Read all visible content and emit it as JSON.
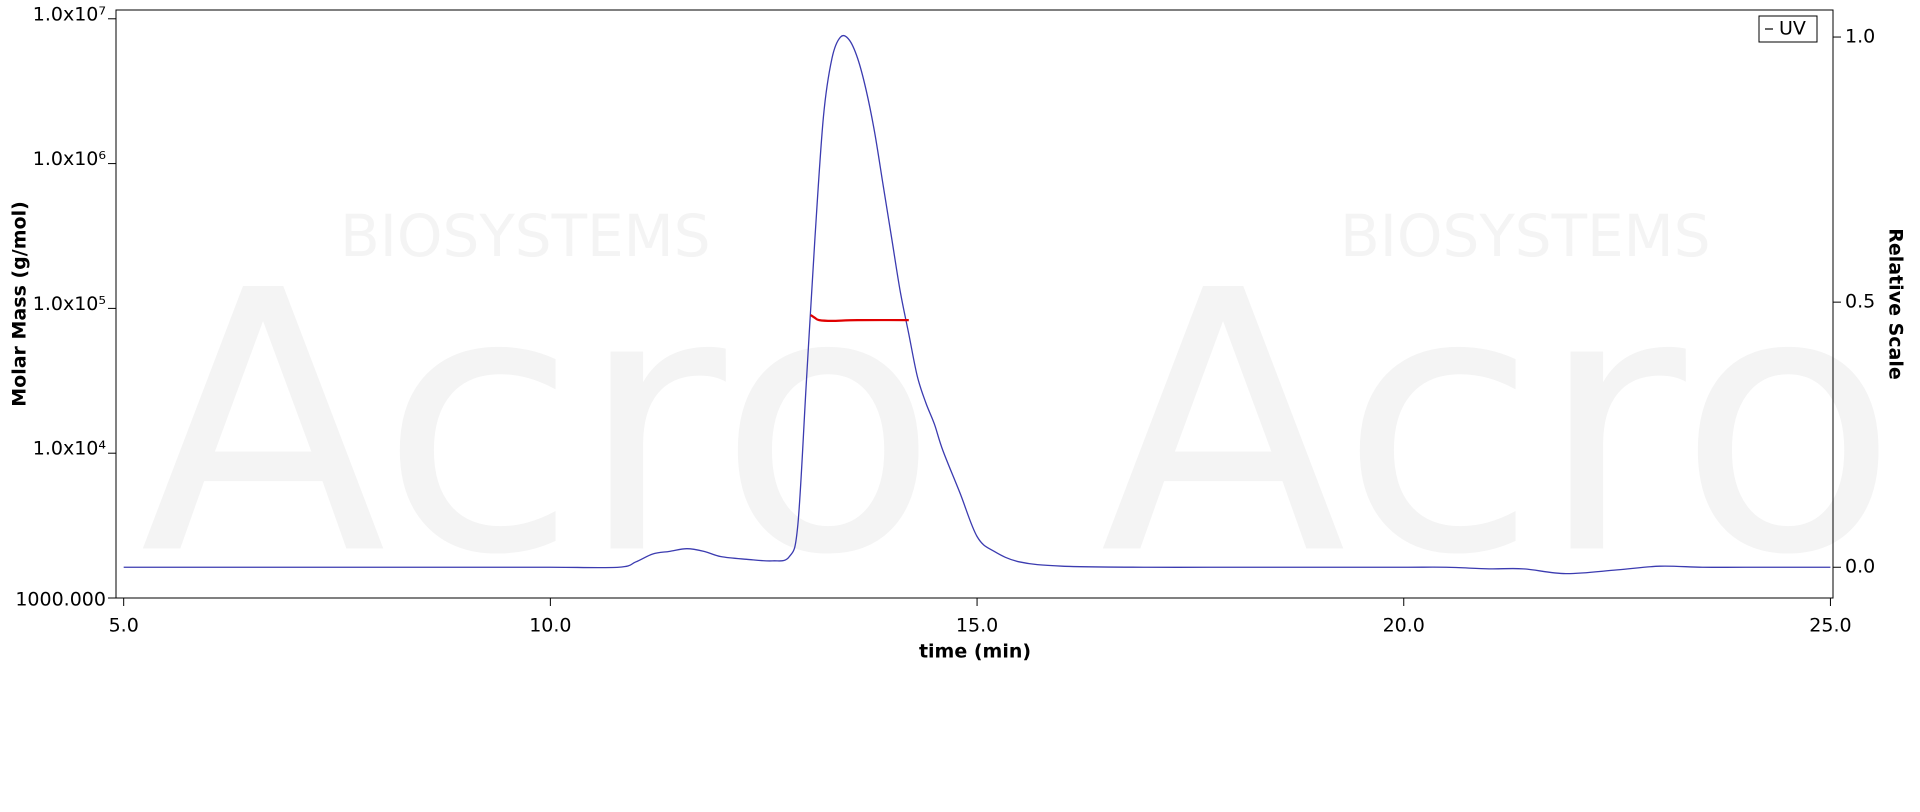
{
  "chart_data": {
    "type": "line",
    "xlabel": "time (min)",
    "ylabel": "Molar Mass (g/mol)",
    "y2label": "Relative Scale",
    "watermark": [
      "Acro",
      "BIOSYSTEMS"
    ],
    "xlim": [
      4.91,
      25.03
    ],
    "xticks": [
      {
        "value": 5,
        "label": "5.0"
      },
      {
        "value": 10,
        "label": "10.0"
      },
      {
        "value": 15,
        "label": "15.0"
      },
      {
        "value": 20,
        "label": "20.0"
      },
      {
        "value": 25,
        "label": "25.0"
      }
    ],
    "ylim": [
      1000,
      11500000
    ],
    "ylog": true,
    "yticks": [
      {
        "value": 1000,
        "label": "1000.000"
      },
      {
        "value": 10000,
        "label": "1.0x10⁴"
      },
      {
        "value": 100000,
        "label": "1.0x10⁵"
      },
      {
        "value": 1000000,
        "label": "1.0x10⁶"
      },
      {
        "value": 10000000,
        "label": "1.0x10⁷"
      }
    ],
    "y2lim": [
      -0.058,
      1.051
    ],
    "y2ticks": [
      {
        "value": 0,
        "label": "0.0"
      },
      {
        "value": 0.5,
        "label": "0.5"
      },
      {
        "value": 1,
        "label": "1.0"
      }
    ],
    "legend": "upper right",
    "series": [
      {
        "name": "UV",
        "color": "#3b3bb0",
        "axis": "y2",
        "x": [
          5.0,
          6,
          7,
          8,
          9,
          10,
          10.8,
          11.0,
          11.2,
          11.4,
          11.6,
          11.8,
          12.0,
          12.3,
          12.6,
          12.8,
          12.9,
          13.0,
          13.1,
          13.2,
          13.3,
          13.4,
          13.5,
          13.6,
          13.7,
          13.8,
          13.9,
          14.0,
          14.1,
          14.2,
          14.3,
          14.4,
          14.5,
          14.6,
          14.8,
          15.0,
          15.2,
          15.5,
          16.0,
          17,
          18,
          19,
          20,
          20.5,
          21.0,
          21.4,
          21.9,
          22.5,
          23.0,
          23.5,
          24,
          25
        ],
        "values": [
          0,
          0,
          0,
          0,
          0,
          0,
          0,
          0.01,
          0.025,
          0.03,
          0.035,
          0.03,
          0.02,
          0.015,
          0.012,
          0.02,
          0.08,
          0.35,
          0.62,
          0.85,
          0.96,
          1.0,
          0.995,
          0.96,
          0.9,
          0.82,
          0.72,
          0.62,
          0.52,
          0.44,
          0.36,
          0.31,
          0.27,
          0.22,
          0.14,
          0.058,
          0.03,
          0.01,
          0.002,
          0,
          0,
          0,
          0,
          0,
          -0.003,
          -0.003,
          -0.012,
          -0.005,
          0.002,
          0,
          0,
          0
        ]
      },
      {
        "color": "#e00000",
        "x": [
          13.05,
          13.1,
          13.15,
          13.3,
          13.6,
          14.2
        ],
        "values": [
          90000,
          86000,
          83000,
          82000,
          83000,
          83000
        ]
      }
    ]
  }
}
